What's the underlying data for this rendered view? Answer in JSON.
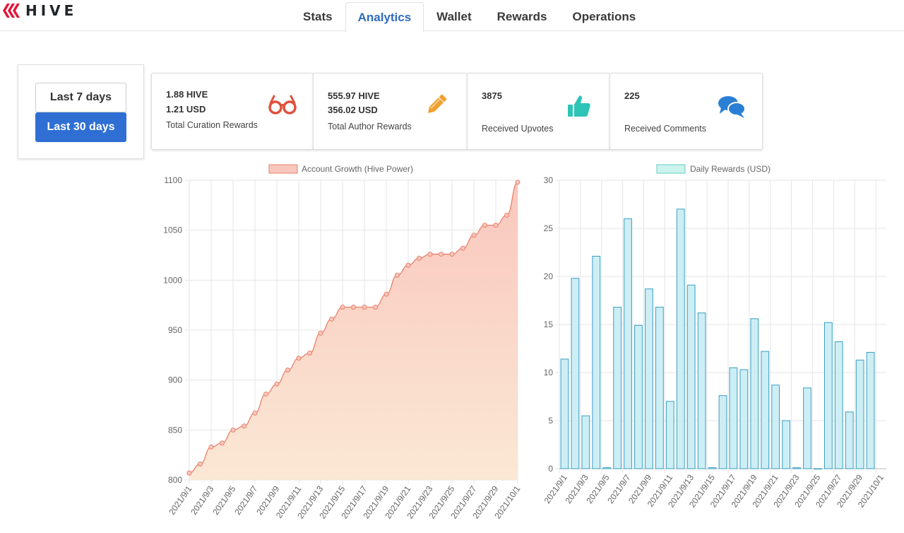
{
  "app": {
    "brand": "HIVE",
    "tabs": [
      {
        "label": "Stats",
        "active": false
      },
      {
        "label": "Analytics",
        "active": true
      },
      {
        "label": "Wallet",
        "active": false
      },
      {
        "label": "Rewards",
        "active": false
      },
      {
        "label": "Operations",
        "active": false
      }
    ]
  },
  "range": {
    "last7_label": "Last 7 days",
    "last30_label": "Last 30 days",
    "selected": "Last 30 days"
  },
  "cards": {
    "curation": {
      "hive": "1.88 HIVE",
      "usd": "1.21 USD",
      "label": "Total Curation Rewards",
      "icon": "glasses-icon",
      "color": "#e0503c"
    },
    "author": {
      "hive": "555.97 HIVE",
      "usd": "356.02 USD",
      "label": "Total Author Rewards",
      "icon": "pencil-icon",
      "color": "#f0a030"
    },
    "upvotes": {
      "value": "3875",
      "label": "Received Upvotes",
      "icon": "thumbs-up-icon",
      "color": "#2ec4b6"
    },
    "comments": {
      "value": "225",
      "label": "Received Comments",
      "icon": "comments-icon",
      "color": "#2a7fd4"
    }
  },
  "chart_data": [
    {
      "type": "area",
      "title": "",
      "legend": "Account Growth (Hive Power)",
      "legend_placement": "top-center",
      "grid": true,
      "ylim": [
        800,
        1100
      ],
      "yticks": [
        800,
        850,
        900,
        950,
        1000,
        1050,
        1100
      ],
      "xticks": [
        "2021/9/1",
        "2021/9/3",
        "2021/9/5",
        "2021/9/7",
        "2021/9/9",
        "2021/9/11",
        "2021/9/13",
        "2021/9/15",
        "2021/9/17",
        "2021/9/19",
        "2021/9/21",
        "2021/9/23",
        "2021/9/25",
        "2021/9/27",
        "2021/9/29",
        "2021/10/1"
      ],
      "x": [
        "2021/9/1",
        "2021/9/2",
        "2021/9/3",
        "2021/9/4",
        "2021/9/5",
        "2021/9/6",
        "2021/9/7",
        "2021/9/8",
        "2021/9/9",
        "2021/9/10",
        "2021/9/11",
        "2021/9/12",
        "2021/9/13",
        "2021/9/14",
        "2021/9/15",
        "2021/9/16",
        "2021/9/17",
        "2021/9/18",
        "2021/9/19",
        "2021/9/20",
        "2021/9/21",
        "2021/9/22",
        "2021/9/23",
        "2021/9/24",
        "2021/9/25",
        "2021/9/26",
        "2021/9/27",
        "2021/9/28",
        "2021/9/29",
        "2021/9/30",
        "2021/10/1"
      ],
      "values": [
        807,
        816,
        833,
        837,
        850,
        854,
        867,
        886,
        896,
        910,
        922,
        927,
        947,
        961,
        973,
        973,
        973,
        973,
        986,
        1005,
        1015,
        1022,
        1026,
        1026,
        1026,
        1032,
        1045,
        1055,
        1055,
        1065,
        1098
      ],
      "colors": {
        "line": "#e8806a",
        "fill_top": "#f9c7bd",
        "fill_bottom": "#fbe8d5",
        "legend_fill": "#f9c7bd",
        "legend_stroke": "#e8806a"
      }
    },
    {
      "type": "bar",
      "title": "",
      "legend": "Daily Rewards (USD)",
      "legend_placement": "top-center",
      "grid": true,
      "ylim": [
        0,
        30
      ],
      "yticks": [
        0,
        5,
        10,
        15,
        20,
        25,
        30
      ],
      "xticks": [
        "2021/9/1",
        "2021/9/3",
        "2021/9/5",
        "2021/9/7",
        "2021/9/9",
        "2021/9/11",
        "2021/9/13",
        "2021/9/15",
        "2021/9/17",
        "2021/9/19",
        "2021/9/21",
        "2021/9/23",
        "2021/9/25",
        "2021/9/27",
        "2021/9/29",
        "2021/10/1"
      ],
      "categories": [
        "2021/9/1",
        "2021/9/2",
        "2021/9/3",
        "2021/9/4",
        "2021/9/5",
        "2021/9/6",
        "2021/9/7",
        "2021/9/8",
        "2021/9/9",
        "2021/9/10",
        "2021/9/11",
        "2021/9/12",
        "2021/9/13",
        "2021/9/14",
        "2021/9/15",
        "2021/9/16",
        "2021/9/17",
        "2021/9/18",
        "2021/9/19",
        "2021/9/20",
        "2021/9/21",
        "2021/9/22",
        "2021/9/23",
        "2021/9/24",
        "2021/9/25",
        "2021/9/26",
        "2021/9/27",
        "2021/9/28",
        "2021/9/29",
        "2021/9/30"
      ],
      "values": [
        11.4,
        19.8,
        5.5,
        22.1,
        0.1,
        16.8,
        26.0,
        14.9,
        18.7,
        16.8,
        7.0,
        27.0,
        19.1,
        16.2,
        0.1,
        7.6,
        10.5,
        10.3,
        15.6,
        12.2,
        8.7,
        5.0,
        0.1,
        8.4,
        0.0,
        15.2,
        13.2,
        5.9,
        11.3,
        12.1
      ],
      "colors": {
        "fill": "#cdeef5",
        "stroke": "#3a9fc2",
        "legend_fill": "#cdf3ef",
        "legend_stroke": "#5fcfc0"
      }
    }
  ]
}
